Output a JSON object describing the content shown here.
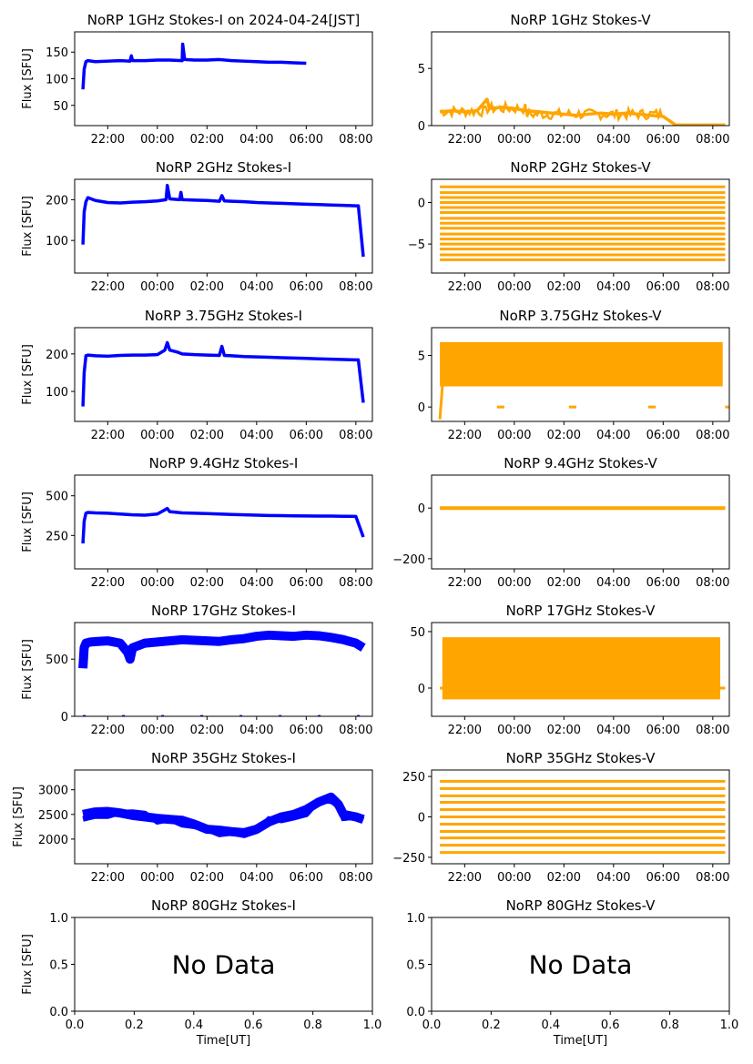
{
  "chart_data": [
    {
      "id": "1-I",
      "type": "scatter",
      "title": "NoRP 1GHz Stokes-I on 2024-04-24[JST]",
      "ylabel": "Flux [SFU]",
      "xlabel": "",
      "x_ticks": [
        "22:00",
        "00:00",
        "02:00",
        "04:00",
        "06:00",
        "08:00"
      ],
      "y_ticks": [
        "50",
        "100",
        "150"
      ],
      "x_range": [
        "20:40",
        "08:40"
      ],
      "ylim": [
        12,
        188
      ],
      "color": "#0000ff",
      "series": [
        {
          "x": [
            21.0,
            21.05,
            21.12,
            21.2,
            21.5,
            22.0,
            22.5,
            22.9,
            22.95,
            23.0,
            23.5,
            24.0,
            24.5,
            25.0,
            25.02,
            25.1,
            25.5,
            26.0,
            26.5,
            27.0,
            27.5,
            28.0,
            28.5,
            29.0,
            29.5,
            30.0
          ],
          "y": [
            80,
            118,
            132,
            134,
            132,
            133,
            134,
            133,
            143,
            134,
            134,
            135,
            135,
            134,
            165,
            136,
            135,
            135,
            136,
            134,
            133,
            132,
            131,
            131,
            130,
            129
          ]
        }
      ]
    },
    {
      "id": "1-V",
      "type": "scatter",
      "title": "NoRP 1GHz Stokes-V",
      "ylabel": "",
      "xlabel": "",
      "x_ticks": [
        "22:00",
        "00:00",
        "02:00",
        "04:00",
        "06:00",
        "08:00"
      ],
      "y_ticks": [
        "0",
        "5"
      ],
      "x_range": [
        "20:40",
        "08:40"
      ],
      "ylim": [
        0,
        8.2
      ],
      "color": "#ffa500",
      "series": [
        {
          "x": [
            21.0,
            21.5,
            22.0,
            22.5,
            22.9,
            23.0,
            23.5,
            24.0,
            24.5,
            25.0,
            25.5,
            26.0,
            26.5,
            27.0,
            27.5,
            28.0,
            28.5,
            29.0,
            29.5,
            30.0,
            30.5,
            31.0,
            31.5,
            32.0,
            32.5
          ],
          "y": [
            1.2,
            1.3,
            1.2,
            1.3,
            2.3,
            1.5,
            1.6,
            1.5,
            1.3,
            1.2,
            1.1,
            1.0,
            0.9,
            1.0,
            1.1,
            1.0,
            1.1,
            1.0,
            0.9,
            0.8,
            0.05,
            0.05,
            0.05,
            0.05,
            0.05
          ]
        }
      ]
    },
    {
      "id": "2-I",
      "type": "scatter",
      "title": "NoRP 2GHz Stokes-I",
      "ylabel": "Flux [SFU]",
      "xlabel": "",
      "x_ticks": [
        "22:00",
        "00:00",
        "02:00",
        "04:00",
        "06:00",
        "08:00"
      ],
      "y_ticks": [
        "100",
        "200"
      ],
      "x_range": [
        "20:40",
        "08:40"
      ],
      "ylim": [
        20,
        250
      ],
      "color": "#0000ff",
      "series": [
        {
          "x": [
            21.0,
            21.05,
            21.12,
            21.2,
            21.5,
            22.0,
            22.5,
            23.0,
            23.5,
            24.0,
            24.35,
            24.4,
            24.5,
            24.9,
            24.95,
            25.0,
            25.5,
            26.0,
            26.5,
            26.6,
            26.7,
            27.0,
            27.5,
            28.0,
            28.5,
            29.0,
            29.5,
            30.0,
            30.5,
            31.0,
            31.5,
            32.0,
            32.1,
            32.3
          ],
          "y": [
            90,
            170,
            195,
            205,
            198,
            193,
            192,
            194,
            195,
            197,
            200,
            235,
            202,
            200,
            218,
            200,
            199,
            198,
            196,
            210,
            197,
            196,
            195,
            193,
            192,
            191,
            190,
            189,
            188,
            187,
            186,
            185,
            185,
            60
          ]
        }
      ]
    },
    {
      "id": "2-V",
      "type": "scatter",
      "title": "NoRP 2GHz Stokes-V",
      "ylabel": "",
      "xlabel": "",
      "x_ticks": [
        "22:00",
        "00:00",
        "02:00",
        "04:00",
        "06:00",
        "08:00"
      ],
      "y_ticks": [
        "-5",
        "0"
      ],
      "x_range": [
        "20:40",
        "08:40"
      ],
      "ylim": [
        -8.5,
        2.8
      ],
      "color": "#ffa500",
      "series": [
        {
          "x": [
            21.0,
            32.5
          ],
          "y": [
            1.9,
            1.9
          ]
        },
        {
          "x": [
            21.0,
            32.5
          ],
          "y": [
            1.2,
            1.2
          ]
        },
        {
          "x": [
            21.0,
            32.5
          ],
          "y": [
            0.6,
            0.6
          ]
        },
        {
          "x": [
            21.0,
            32.5
          ],
          "y": [
            0.0,
            0.0
          ]
        },
        {
          "x": [
            21.0,
            32.5
          ],
          "y": [
            -0.6,
            -0.6
          ]
        },
        {
          "x": [
            21.0,
            32.5
          ],
          "y": [
            -1.2,
            -1.2
          ]
        },
        {
          "x": [
            21.0,
            32.5
          ],
          "y": [
            -1.9,
            -1.9
          ]
        },
        {
          "x": [
            21.0,
            32.5
          ],
          "y": [
            -2.5,
            -2.5
          ]
        },
        {
          "x": [
            21.0,
            32.5
          ],
          "y": [
            -3.1,
            -3.1
          ]
        },
        {
          "x": [
            21.0,
            32.5
          ],
          "y": [
            -3.8,
            -3.8
          ]
        },
        {
          "x": [
            21.0,
            32.5
          ],
          "y": [
            -4.4,
            -4.4
          ]
        },
        {
          "x": [
            21.0,
            32.5
          ],
          "y": [
            -5.0,
            -5.0
          ]
        },
        {
          "x": [
            21.0,
            32.5
          ],
          "y": [
            -5.6,
            -5.6
          ]
        },
        {
          "x": [
            21.0,
            32.5
          ],
          "y": [
            -6.3,
            -6.3
          ]
        },
        {
          "x": [
            21.0,
            32.5
          ],
          "y": [
            -6.9,
            -6.9
          ]
        }
      ]
    },
    {
      "id": "3.75-I",
      "type": "scatter",
      "title": "NoRP 3.75GHz Stokes-I",
      "ylabel": "Flux [SFU]",
      "xlabel": "",
      "x_ticks": [
        "22:00",
        "00:00",
        "02:00",
        "04:00",
        "06:00",
        "08:00"
      ],
      "y_ticks": [
        "100",
        "200"
      ],
      "x_range": [
        "20:40",
        "08:40"
      ],
      "ylim": [
        20,
        270
      ],
      "color": "#0000ff",
      "series": [
        {
          "x": [
            21.0,
            21.05,
            21.12,
            21.2,
            21.5,
            22.0,
            22.5,
            23.0,
            23.5,
            24.0,
            24.3,
            24.4,
            24.5,
            24.8,
            25.0,
            25.5,
            26.0,
            26.5,
            26.6,
            26.7,
            27.0,
            27.5,
            28.0,
            28.5,
            29.0,
            29.5,
            30.0,
            30.5,
            31.0,
            31.5,
            32.0,
            32.1,
            32.3
          ],
          "y": [
            60,
            150,
            195,
            197,
            195,
            194,
            196,
            197,
            197,
            198,
            210,
            230,
            210,
            205,
            200,
            198,
            197,
            196,
            220,
            196,
            195,
            193,
            192,
            191,
            190,
            189,
            188,
            187,
            186,
            185,
            184,
            184,
            70
          ]
        }
      ]
    },
    {
      "id": "3.75-V",
      "type": "scatter",
      "title": "NoRP 3.75GHz Stokes-V",
      "ylabel": "",
      "xlabel": "",
      "x_ticks": [
        "22:00",
        "00:00",
        "02:00",
        "04:00",
        "06:00",
        "08:00"
      ],
      "y_ticks": [
        "0",
        "5"
      ],
      "x_range": [
        "20:40",
        "08:40"
      ],
      "ylim": [
        -1.4,
        7.7
      ],
      "color": "#ffa500",
      "series": [
        {
          "x": [
            21.0,
            32.4
          ],
          "y": [
            6.0,
            6.0
          ]
        },
        {
          "x": [
            21.0,
            32.4
          ],
          "y": [
            2.3,
            2.3
          ]
        },
        {
          "x": [
            21.0,
            32.4
          ],
          "y": [
            4.0,
            4.0
          ]
        }
      ]
    },
    {
      "id": "9.4-I",
      "type": "scatter",
      "title": "NoRP 9.4GHz Stokes-I",
      "ylabel": "Flux [SFU]",
      "xlabel": "",
      "x_ticks": [
        "22:00",
        "00:00",
        "02:00",
        "04:00",
        "06:00",
        "08:00"
      ],
      "y_ticks": [
        "250",
        "500"
      ],
      "x_range": [
        "20:40",
        "08:40"
      ],
      "ylim": [
        40,
        630
      ],
      "color": "#0000ff",
      "series": [
        {
          "x": [
            21.0,
            21.05,
            21.12,
            21.2,
            21.5,
            22.0,
            22.5,
            23.0,
            23.5,
            24.0,
            24.4,
            24.5,
            25.0,
            25.5,
            26.0,
            26.5,
            27.0,
            27.5,
            28.0,
            28.5,
            29.0,
            29.5,
            30.0,
            30.5,
            31.0,
            31.5,
            32.0,
            32.3
          ],
          "y": [
            200,
            340,
            390,
            395,
            392,
            390,
            385,
            380,
            378,
            385,
            420,
            400,
            392,
            390,
            388,
            385,
            382,
            380,
            378,
            376,
            375,
            374,
            373,
            372,
            372,
            371,
            370,
            240
          ]
        }
      ]
    },
    {
      "id": "9.4-V",
      "type": "scatter",
      "title": "NoRP 9.4GHz Stokes-V",
      "ylabel": "",
      "xlabel": "",
      "x_ticks": [
        "22:00",
        "00:00",
        "02:00",
        "04:00",
        "06:00",
        "08:00"
      ],
      "y_ticks": [
        "-200",
        "0"
      ],
      "x_range": [
        "20:40",
        "08:40"
      ],
      "ylim": [
        -240,
        130
      ],
      "color": "#ffa500",
      "series": [
        {
          "x": [
            21.0,
            32.5
          ],
          "y": [
            0,
            0
          ]
        }
      ]
    },
    {
      "id": "17-I",
      "type": "scatter",
      "title": "NoRP 17GHz Stokes-I",
      "ylabel": "Flux [SFU]",
      "xlabel": "",
      "x_ticks": [
        "22:00",
        "00:00",
        "02:00",
        "04:00",
        "06:00",
        "08:00"
      ],
      "y_ticks": [
        "0",
        "500"
      ],
      "x_range": [
        "20:40",
        "08:40"
      ],
      "ylim": [
        0,
        820
      ],
      "color": "#0000ff",
      "series": [
        {
          "x": [
            21.0,
            21.05,
            21.12,
            21.3,
            21.6,
            22.0,
            22.5,
            22.8,
            22.9,
            23.0,
            23.5,
            24.0,
            24.5,
            25.0,
            25.5,
            26.0,
            26.5,
            27.0,
            27.5,
            28.0,
            28.5,
            29.0,
            29.5,
            30.0,
            30.5,
            31.0,
            31.5,
            32.0,
            32.3
          ],
          "y": [
            420,
            600,
            640,
            650,
            655,
            660,
            640,
            560,
            500,
            600,
            640,
            650,
            660,
            670,
            665,
            660,
            655,
            670,
            680,
            700,
            710,
            705,
            700,
            710,
            705,
            690,
            670,
            640,
            600
          ]
        }
      ]
    },
    {
      "id": "17-V",
      "type": "scatter",
      "title": "NoRP 17GHz Stokes-V",
      "ylabel": "",
      "xlabel": "",
      "x_ticks": [
        "22:00",
        "00:00",
        "02:00",
        "04:00",
        "06:00",
        "08:00"
      ],
      "y_ticks": [
        "0",
        "50"
      ],
      "x_range": [
        "20:40",
        "08:40"
      ],
      "ylim": [
        -25,
        58
      ],
      "color": "#ffa500",
      "series": [
        {
          "x": [
            21.0,
            32.5
          ],
          "y": [
            40,
            40
          ]
        },
        {
          "x": [
            21.0,
            32.5
          ],
          "y": [
            -10,
            -10
          ]
        },
        {
          "x": [
            21.0,
            32.5
          ],
          "y": [
            15,
            15
          ]
        }
      ]
    },
    {
      "id": "35-I",
      "type": "scatter",
      "title": "NoRP 35GHz Stokes-I",
      "ylabel": "Flux [SFU]",
      "xlabel": "",
      "x_ticks": [
        "22:00",
        "00:00",
        "02:00",
        "04:00",
        "06:00",
        "08:00"
      ],
      "y_ticks": [
        "2000",
        "2500",
        "3000"
      ],
      "x_range": [
        "20:40",
        "08:40"
      ],
      "ylim": [
        1500,
        3400
      ],
      "color": "#0000ff",
      "series": [
        {
          "x": [
            21.0,
            21.5,
            22.0,
            22.5,
            23.0,
            23.5,
            24.0,
            24.5,
            25.0,
            25.5,
            26.0,
            26.5,
            27.0,
            27.5,
            28.0,
            28.5,
            29.0,
            29.5,
            30.0,
            30.5,
            31.0,
            31.3,
            31.5,
            32.0,
            32.3
          ],
          "y": [
            2500,
            2550,
            2560,
            2530,
            2480,
            2450,
            2420,
            2400,
            2380,
            2300,
            2200,
            2180,
            2150,
            2130,
            2200,
            2350,
            2450,
            2500,
            2600,
            2750,
            2850,
            2700,
            2500,
            2450,
            2400
          ]
        }
      ]
    },
    {
      "id": "35-V",
      "type": "scatter",
      "title": "NoRP 35GHz Stokes-V",
      "ylabel": "",
      "xlabel": "",
      "x_ticks": [
        "22:00",
        "00:00",
        "02:00",
        "04:00",
        "06:00",
        "08:00"
      ],
      "y_ticks": [
        "-250",
        "0",
        "250"
      ],
      "x_range": [
        "20:40",
        "08:40"
      ],
      "ylim": [
        -290,
        290
      ],
      "color": "#ffa500",
      "series": [
        {
          "x": [
            21.0,
            32.5
          ],
          "y": [
            220,
            220
          ]
        },
        {
          "x": [
            21.0,
            32.5
          ],
          "y": [
            175,
            175
          ]
        },
        {
          "x": [
            21.0,
            32.5
          ],
          "y": [
            130,
            130
          ]
        },
        {
          "x": [
            21.0,
            32.5
          ],
          "y": [
            90,
            90
          ]
        },
        {
          "x": [
            21.0,
            32.5
          ],
          "y": [
            45,
            45
          ]
        },
        {
          "x": [
            21.0,
            32.5
          ],
          "y": [
            0,
            0
          ]
        },
        {
          "x": [
            21.0,
            32.5
          ],
          "y": [
            -45,
            -45
          ]
        },
        {
          "x": [
            21.0,
            32.5
          ],
          "y": [
            -90,
            -90
          ]
        },
        {
          "x": [
            21.0,
            32.5
          ],
          "y": [
            -130,
            -130
          ]
        },
        {
          "x": [
            21.0,
            32.5
          ],
          "y": [
            -175,
            -175
          ]
        },
        {
          "x": [
            21.0,
            32.5
          ],
          "y": [
            -220,
            -220
          ]
        }
      ]
    },
    {
      "id": "80-I",
      "type": "table",
      "title": "NoRP 80GHz Stokes-I",
      "ylabel": "Flux [SFU]",
      "xlabel": "Time[UT]",
      "x_ticks": [
        "0.0",
        "0.2",
        "0.4",
        "0.6",
        "0.8",
        "1.0"
      ],
      "y_ticks": [
        "0.0",
        "0.5",
        "1.0"
      ],
      "xlim": [
        0,
        1
      ],
      "ylim": [
        0,
        1
      ],
      "annotation": "No Data",
      "series": []
    },
    {
      "id": "80-V",
      "type": "table",
      "title": "NoRP 80GHz Stokes-V",
      "ylabel": "",
      "xlabel": "Time[UT]",
      "x_ticks": [
        "0.0",
        "0.2",
        "0.4",
        "0.6",
        "0.8",
        "1.0"
      ],
      "y_ticks": [
        "0.0",
        "0.5",
        "1.0"
      ],
      "xlim": [
        0,
        1
      ],
      "ylim": [
        0,
        1
      ],
      "annotation": "No Data",
      "series": []
    }
  ]
}
